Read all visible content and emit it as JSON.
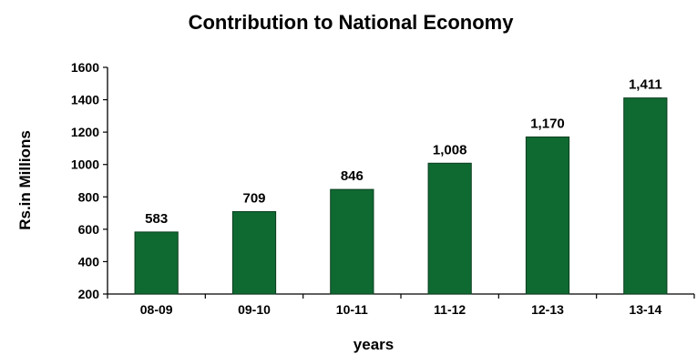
{
  "chart_data": {
    "type": "bar",
    "title": "Contribution to National Economy",
    "xlabel": "years",
    "ylabel": "Rs.in Millions",
    "categories": [
      "08-09",
      "09-10",
      "10-11",
      "11-12",
      "12-13",
      "13-14"
    ],
    "values": [
      583,
      709,
      846,
      1008,
      1170,
      1411
    ],
    "data_labels": [
      "583",
      "709",
      "846",
      "1,008",
      "1,170",
      "1,411"
    ],
    "ylim": [
      200,
      1600
    ],
    "yticks": [
      "200",
      "400",
      "600",
      "800",
      "1000",
      "1200",
      "1400",
      "1600"
    ],
    "grid": false,
    "legend": "none",
    "bar_color": "#0f6a32"
  }
}
